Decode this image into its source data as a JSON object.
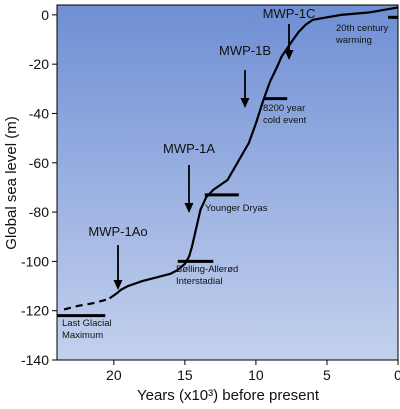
{
  "chart_data": {
    "type": "line",
    "xlabel": "Years (x10³) before present",
    "ylabel": "Global sea level (m)",
    "xlim": [
      24,
      0
    ],
    "ylim": [
      -140,
      4
    ],
    "xticks": [
      20,
      15,
      10,
      5,
      0
    ],
    "yticks": [
      0,
      -20,
      -40,
      -60,
      -80,
      -100,
      -120,
      -140
    ],
    "color": "#000000",
    "background": [
      "#6f8fd4",
      "#c4d1ee"
    ],
    "series": [
      {
        "dash": true,
        "x": [
          23.5,
          22.5,
          21.5,
          20.5
        ],
        "values": [
          -119.5,
          -118,
          -117,
          -115.5
        ]
      },
      {
        "dash": false,
        "x": [
          20.3,
          19.8,
          19.5,
          19,
          18,
          17,
          16,
          15.5,
          15,
          14.7,
          14.5,
          14.3,
          14.1,
          13.9,
          13.5,
          13,
          12,
          11.5,
          11,
          10.5,
          10,
          9.5,
          9,
          8.5,
          8.2,
          7.5,
          7,
          6.5,
          6,
          5,
          4,
          3,
          2,
          1,
          0
        ],
        "values": [
          -115,
          -113,
          -111.5,
          -110,
          -108,
          -106.5,
          -105,
          -103.5,
          -101,
          -98,
          -94,
          -89,
          -84,
          -79,
          -74,
          -71,
          -67,
          -62,
          -57,
          -52,
          -44,
          -35,
          -27,
          -21,
          -17,
          -11,
          -7,
          -4,
          -2,
          -1,
          0,
          0.5,
          1,
          2,
          3
        ]
      }
    ],
    "events": [
      {
        "label": [
          "Last Glacial",
          "Maximum"
        ],
        "x": [
          24,
          20.6
        ],
        "value": -122
      },
      {
        "label": [
          "Bølling-Allerød",
          "Interstadial"
        ],
        "x": [
          15.5,
          13
        ],
        "value": -100
      },
      {
        "label": [
          "Younger Dryas"
        ],
        "x": [
          13.6,
          11.2
        ],
        "value": -73
      },
      {
        "label": [
          "8200 year",
          "cold event"
        ],
        "x": [
          9.4,
          7.8
        ],
        "value": -34
      },
      {
        "label": [
          "20th century",
          "warming"
        ],
        "x": [
          0.7,
          0
        ],
        "value": -1
      }
    ],
    "annotations": [
      "MWP-1Ao",
      "MWP-1A",
      "MWP-1B",
      "MWP-1C"
    ]
  }
}
